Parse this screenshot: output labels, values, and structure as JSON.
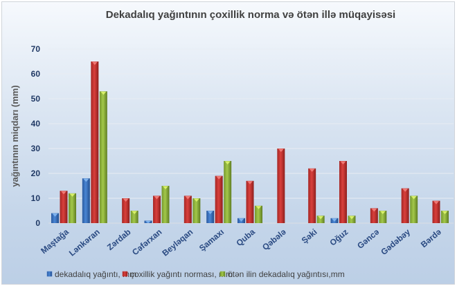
{
  "chart_data": {
    "type": "bar",
    "title": "Dekadalıq yağıntının çoxillik norma  və ötən illə müqayisəsi",
    "xlabel": "",
    "ylabel": "yağıntının miqdarı (mm)",
    "ylim": [
      0,
      70
    ],
    "yticks": [
      0,
      10,
      20,
      30,
      40,
      50,
      60,
      70
    ],
    "ytick_labels": [
      "0",
      "10",
      "20",
      "30",
      "40",
      "50",
      "60",
      "70"
    ],
    "grid": true,
    "legend_position": "bottom",
    "categories": [
      "Maştağa",
      "Lənkəran",
      "Zərdab",
      "Cəfərxan",
      "Beyləqan",
      "Şamaxı",
      "Quba",
      "Qəbələ",
      "Şəki",
      "Oğuz",
      "Gəncə",
      "Gədəbəy",
      "Bərdə"
    ],
    "series": [
      {
        "name": "dekadalıq yağıntı, mm",
        "color": "#3c72c0",
        "values": [
          4,
          18,
          0,
          1,
          0,
          5,
          2,
          0,
          0,
          2,
          0,
          0,
          0
        ]
      },
      {
        "name": "çoxillik yağıntı norması, mm",
        "color": "#c8312f",
        "values": [
          13,
          65,
          10,
          11,
          11,
          19,
          17,
          30,
          22,
          25,
          6,
          14,
          9
        ]
      },
      {
        "name": "ötən ilin dekadalıq yağıntısı,mm",
        "color": "#8db33a",
        "values": [
          12,
          53,
          5,
          15,
          10,
          25,
          7,
          0,
          3,
          3,
          5,
          11,
          5
        ]
      }
    ]
  }
}
